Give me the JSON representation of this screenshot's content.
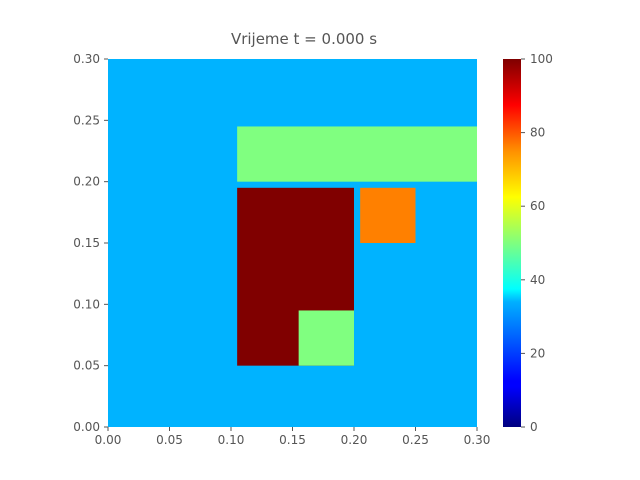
{
  "chart_data": {
    "type": "heatmap",
    "title": "Vrijeme t = 0.000 s",
    "xlabel": "",
    "ylabel": "",
    "xlim": [
      0.0,
      0.3
    ],
    "ylim": [
      0.0,
      0.3
    ],
    "x_ticks": [
      "0.00",
      "0.05",
      "0.10",
      "0.15",
      "0.20",
      "0.25",
      "0.30"
    ],
    "y_ticks": [
      "0.00",
      "0.05",
      "0.10",
      "0.15",
      "0.20",
      "0.25",
      "0.30"
    ],
    "colorbar": {
      "colormap": "jet",
      "range": [
        0,
        100
      ],
      "ticks": [
        "0",
        "20",
        "40",
        "60",
        "80",
        "100"
      ]
    },
    "background_value": 30,
    "regions": [
      {
        "x": [
          0.105,
          0.3
        ],
        "y": [
          0.2,
          0.245
        ],
        "value": 50
      },
      {
        "x": [
          0.105,
          0.2
        ],
        "y": [
          0.05,
          0.195
        ],
        "value": 100
      },
      {
        "x": [
          0.155,
          0.2
        ],
        "y": [
          0.05,
          0.095
        ],
        "value": 50
      },
      {
        "x": [
          0.205,
          0.25
        ],
        "y": [
          0.15,
          0.195
        ],
        "value": 75
      }
    ],
    "grid": false
  }
}
